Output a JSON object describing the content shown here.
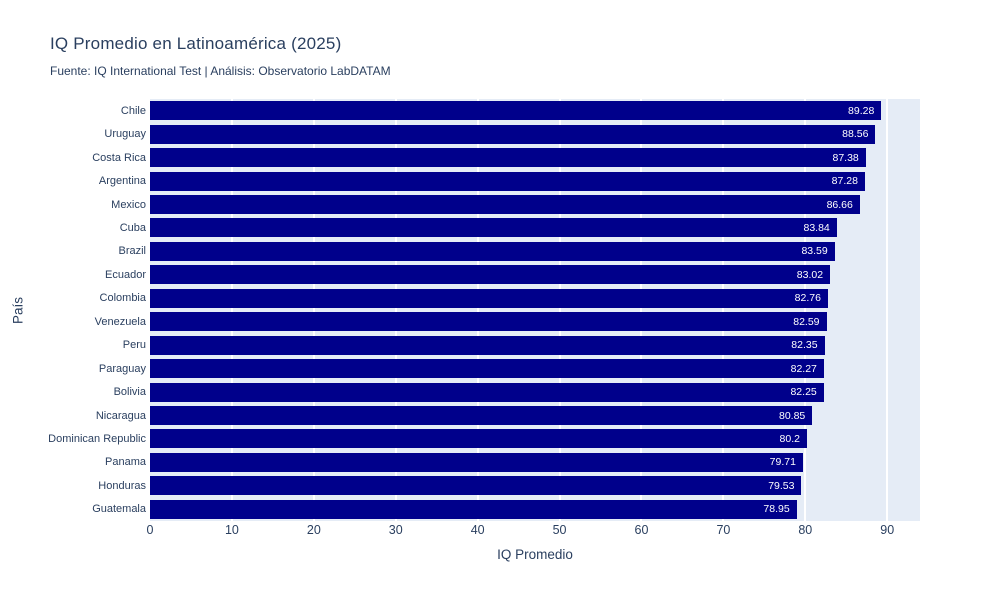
{
  "title": "IQ Promedio en Latinoamérica (2025)",
  "subtitle": "Fuente: IQ International Test | Análisis: Observatorio LabDATAM",
  "chart_data": {
    "type": "bar",
    "orientation": "horizontal",
    "title": "IQ Promedio en Latinoamérica (2025)",
    "subtitle": "Fuente: IQ International Test | Análisis: Observatorio LabDATAM",
    "xlabel": "IQ Promedio",
    "ylabel": "País",
    "categories": [
      "Chile",
      "Uruguay",
      "Costa Rica",
      "Argentina",
      "Mexico",
      "Cuba",
      "Brazil",
      "Ecuador",
      "Colombia",
      "Venezuela",
      "Peru",
      "Paraguay",
      "Bolivia",
      "Nicaragua",
      "Dominican Republic",
      "Panama",
      "Honduras",
      "Guatemala"
    ],
    "values": [
      89.28,
      88.56,
      87.38,
      87.28,
      86.66,
      83.84,
      83.59,
      83.02,
      82.76,
      82.59,
      82.35,
      82.27,
      82.25,
      80.85,
      80.2,
      79.71,
      79.53,
      78.95
    ],
    "value_labels": [
      "89.28",
      "88.56",
      "87.38",
      "87.28",
      "86.66",
      "83.84",
      "83.59",
      "83.02",
      "82.76",
      "82.59",
      "82.35",
      "82.27",
      "82.25",
      "80.85",
      "80.2",
      "79.71",
      "79.53",
      "78.95"
    ],
    "xlim": [
      0,
      94
    ],
    "xticks": [
      0,
      10,
      20,
      30,
      40,
      50,
      60,
      70,
      80,
      90
    ],
    "xtick_labels": [
      "0",
      "10",
      "20",
      "30",
      "40",
      "50",
      "60",
      "70",
      "80",
      "90"
    ],
    "grid": "vertical",
    "legend": "none",
    "colors": {
      "bar": "#00008B",
      "plot_background": "#E5ECF6",
      "page_background": "#FFFFFF",
      "gridline": "#FFFFFF",
      "text": "#2a3f5f",
      "bar_value_text": "#FFFFFF"
    }
  }
}
